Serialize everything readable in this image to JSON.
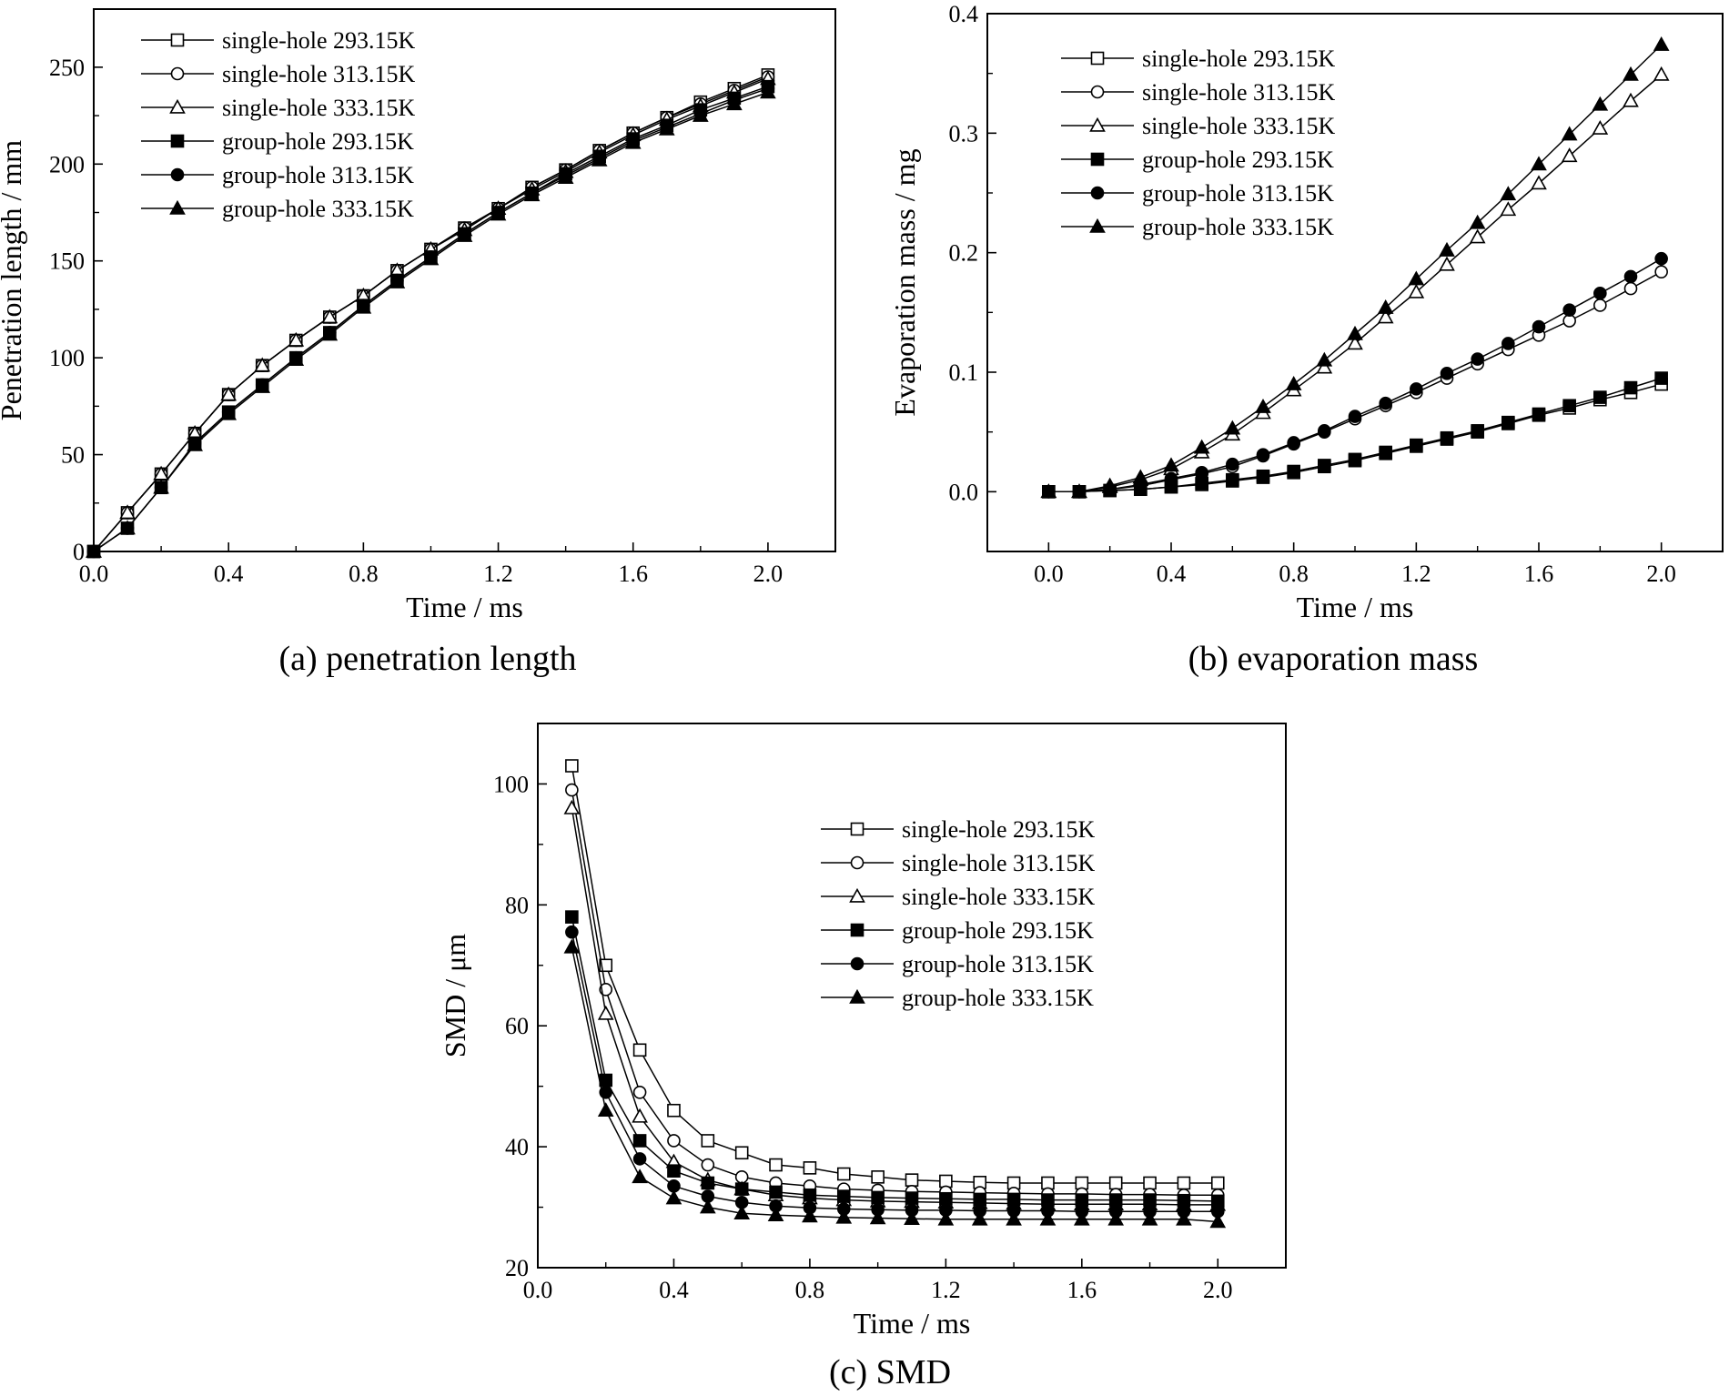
{
  "captions": {
    "a": "(a) penetration length",
    "b": "(b) evaporation mass",
    "c": "(c) SMD"
  },
  "chart_data": [
    {
      "id": "a",
      "type": "line",
      "xlabel": "Time / ms",
      "ylabel": "Penetration length / mm",
      "xlim": [
        0.0,
        2.2
      ],
      "ylim": [
        0,
        280
      ],
      "xticks": [
        "0.0",
        "0.4",
        "0.8",
        "1.2",
        "1.6",
        "2.0"
      ],
      "yticks": [
        "0",
        "50",
        "100",
        "150",
        "200",
        "250"
      ],
      "legend_position": "top-left",
      "x": [
        0.0,
        0.1,
        0.2,
        0.3,
        0.4,
        0.5,
        0.6,
        0.7,
        0.8,
        0.9,
        1.0,
        1.1,
        1.2,
        1.3,
        1.4,
        1.5,
        1.6,
        1.7,
        1.8,
        1.9,
        2.0
      ],
      "series": [
        {
          "name": "single-hole 293.15K",
          "marker": "square",
          "filled": false,
          "values": [
            0,
            20,
            40,
            61,
            81,
            96,
            109,
            121,
            132,
            145,
            156,
            167,
            177,
            188,
            197,
            207,
            216,
            224,
            232,
            239,
            246
          ]
        },
        {
          "name": "single-hole 313.15K",
          "marker": "circle",
          "filled": false,
          "values": [
            0,
            20,
            40,
            61,
            81,
            96,
            109,
            121,
            132,
            145,
            156,
            167,
            177,
            188,
            197,
            207,
            216,
            224,
            231,
            238,
            245
          ]
        },
        {
          "name": "single-hole 333.15K",
          "marker": "triangle",
          "filled": false,
          "values": [
            0,
            20,
            40,
            61,
            81,
            96,
            109,
            121,
            132,
            145,
            156,
            166,
            177,
            187,
            196,
            206,
            215,
            223,
            230,
            237,
            244
          ]
        },
        {
          "name": "group-hole 293.15K",
          "marker": "square",
          "filled": true,
          "values": [
            0,
            12,
            33,
            56,
            72,
            86,
            100,
            113,
            127,
            140,
            152,
            164,
            175,
            185,
            195,
            204,
            213,
            220,
            228,
            234,
            240
          ]
        },
        {
          "name": "group-hole 313.15K",
          "marker": "circle",
          "filled": true,
          "values": [
            0,
            12,
            33,
            56,
            72,
            86,
            100,
            113,
            127,
            140,
            152,
            164,
            175,
            185,
            194,
            203,
            212,
            219,
            226,
            233,
            239
          ]
        },
        {
          "name": "group-hole 333.15K",
          "marker": "triangle",
          "filled": true,
          "values": [
            0,
            12,
            33,
            55,
            71,
            85,
            99,
            112,
            126,
            139,
            151,
            163,
            174,
            184,
            193,
            202,
            211,
            218,
            225,
            231,
            237
          ]
        }
      ]
    },
    {
      "id": "b",
      "type": "line",
      "xlabel": "Time / ms",
      "ylabel": "Evaporation mass / mg",
      "xlim": [
        -0.2,
        2.2
      ],
      "ylim": [
        -0.05,
        0.4
      ],
      "xticks": [
        "0.0",
        "0.4",
        "0.8",
        "1.2",
        "1.6",
        "2.0"
      ],
      "yticks": [
        "0.0",
        "0.1",
        "0.2",
        "0.3",
        "0.4"
      ],
      "legend_position": "top-left",
      "x": [
        0.0,
        0.1,
        0.2,
        0.3,
        0.4,
        0.5,
        0.6,
        0.7,
        0.8,
        0.9,
        1.0,
        1.1,
        1.2,
        1.3,
        1.4,
        1.5,
        1.6,
        1.7,
        1.8,
        1.9,
        2.0
      ],
      "series": [
        {
          "name": "single-hole 293.15K",
          "marker": "square",
          "filled": false,
          "values": [
            0,
            0,
            0.001,
            0.002,
            0.004,
            0.006,
            0.009,
            0.012,
            0.016,
            0.021,
            0.026,
            0.032,
            0.038,
            0.044,
            0.05,
            0.057,
            0.064,
            0.07,
            0.077,
            0.083,
            0.09
          ]
        },
        {
          "name": "single-hole 313.15K",
          "marker": "circle",
          "filled": false,
          "values": [
            0,
            0,
            0.002,
            0.005,
            0.01,
            0.015,
            0.021,
            0.03,
            0.04,
            0.05,
            0.061,
            0.072,
            0.083,
            0.095,
            0.107,
            0.119,
            0.131,
            0.143,
            0.156,
            0.17,
            0.184
          ]
        },
        {
          "name": "single-hole 333.15K",
          "marker": "triangle",
          "filled": false,
          "values": [
            0,
            0,
            0.004,
            0.01,
            0.019,
            0.033,
            0.048,
            0.066,
            0.085,
            0.104,
            0.124,
            0.146,
            0.167,
            0.19,
            0.213,
            0.236,
            0.258,
            0.281,
            0.304,
            0.327,
            0.349
          ]
        },
        {
          "name": "group-hole 293.15K",
          "marker": "square",
          "filled": true,
          "values": [
            0,
            0,
            0.001,
            0.002,
            0.004,
            0.007,
            0.01,
            0.013,
            0.017,
            0.022,
            0.027,
            0.033,
            0.039,
            0.045,
            0.051,
            0.058,
            0.065,
            0.072,
            0.079,
            0.087,
            0.095
          ]
        },
        {
          "name": "group-hole 313.15K",
          "marker": "circle",
          "filled": true,
          "values": [
            0,
            0,
            0.002,
            0.006,
            0.011,
            0.016,
            0.023,
            0.031,
            0.041,
            0.051,
            0.063,
            0.074,
            0.086,
            0.099,
            0.111,
            0.124,
            0.138,
            0.152,
            0.166,
            0.18,
            0.195
          ]
        },
        {
          "name": "group-hole 333.15K",
          "marker": "triangle",
          "filled": true,
          "values": [
            0,
            0,
            0.005,
            0.012,
            0.022,
            0.037,
            0.053,
            0.071,
            0.09,
            0.11,
            0.132,
            0.154,
            0.178,
            0.202,
            0.225,
            0.249,
            0.274,
            0.299,
            0.324,
            0.349,
            0.374
          ]
        }
      ]
    },
    {
      "id": "c",
      "type": "line",
      "xlabel": "Time / ms",
      "ylabel": "SMD / μm",
      "xlim": [
        0.0,
        2.2
      ],
      "ylim": [
        20,
        110
      ],
      "xticks": [
        "0.0",
        "0.4",
        "0.8",
        "1.2",
        "1.6",
        "2.0"
      ],
      "yticks": [
        "20",
        "40",
        "60",
        "80",
        "100"
      ],
      "legend_position": "center-right",
      "x": [
        0.1,
        0.2,
        0.3,
        0.4,
        0.5,
        0.6,
        0.7,
        0.8,
        0.9,
        1.0,
        1.1,
        1.2,
        1.3,
        1.4,
        1.5,
        1.6,
        1.7,
        1.8,
        1.9,
        2.0
      ],
      "series": [
        {
          "name": "single-hole 293.15K",
          "marker": "square",
          "filled": false,
          "values": [
            103,
            70,
            56,
            46,
            41,
            39,
            37,
            36.5,
            35.5,
            35,
            34.5,
            34.3,
            34.1,
            34,
            34,
            34,
            34,
            34,
            34,
            34
          ]
        },
        {
          "name": "single-hole 313.15K",
          "marker": "circle",
          "filled": false,
          "values": [
            99,
            66,
            49,
            41,
            37,
            35,
            34,
            33.5,
            33,
            32.8,
            32.6,
            32.5,
            32.4,
            32.3,
            32.2,
            32.2,
            32.1,
            32.1,
            32,
            32
          ]
        },
        {
          "name": "single-hole 333.15K",
          "marker": "triangle",
          "filled": false,
          "values": [
            96,
            62,
            45,
            37.5,
            34.5,
            33,
            32,
            31.5,
            31.2,
            31,
            30.9,
            30.8,
            30.7,
            30.6,
            30.5,
            30.5,
            30.5,
            30.5,
            30.4,
            30.4
          ]
        },
        {
          "name": "group-hole 293.15K",
          "marker": "square",
          "filled": true,
          "values": [
            78,
            51,
            41,
            36,
            34,
            33,
            32.5,
            32,
            31.8,
            31.6,
            31.5,
            31.4,
            31.3,
            31.3,
            31.2,
            31.2,
            31.2,
            31.2,
            31.1,
            31
          ]
        },
        {
          "name": "group-hole 313.15K",
          "marker": "circle",
          "filled": true,
          "values": [
            75.5,
            49,
            38,
            33.5,
            31.8,
            30.8,
            30.2,
            29.9,
            29.7,
            29.6,
            29.5,
            29.5,
            29.4,
            29.4,
            29.4,
            29.3,
            29.3,
            29.3,
            29.3,
            29.3
          ]
        },
        {
          "name": "group-hole 333.15K",
          "marker": "triangle",
          "filled": true,
          "values": [
            73,
            46,
            35,
            31.5,
            30,
            29,
            28.7,
            28.5,
            28.3,
            28.2,
            28.1,
            28,
            28,
            28,
            28,
            28,
            28,
            28,
            28,
            27.6
          ]
        }
      ]
    }
  ]
}
